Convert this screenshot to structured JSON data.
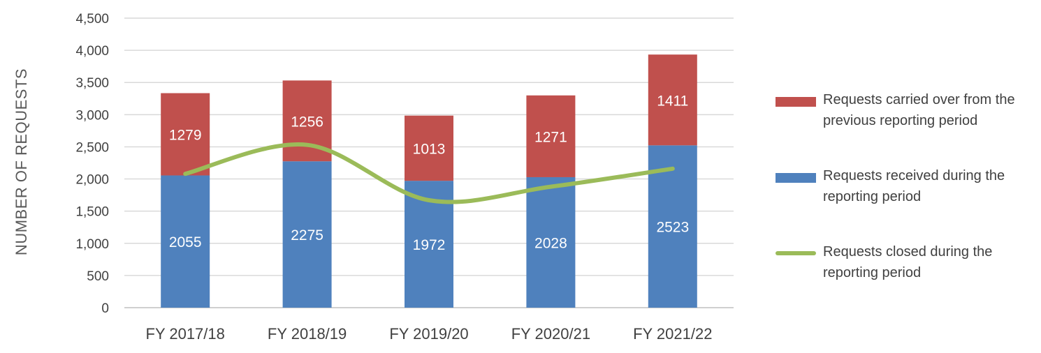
{
  "chart_data": {
    "type": "bar",
    "stacked": true,
    "title": "",
    "xlabel": "",
    "ylabel": "NUMBER OF REQUESTS",
    "ylim": [
      0,
      4500
    ],
    "ytick_step": 500,
    "ytick_labels": [
      "0",
      "500",
      "1,000",
      "1,500",
      "2,000",
      "2,500",
      "3,000",
      "3,500",
      "4,000",
      "4,500"
    ],
    "categories": [
      "FY 2017/18",
      "FY 2018/19",
      "FY 2019/20",
      "FY 2020/21",
      "FY 2021/22"
    ],
    "series": [
      {
        "name": "Requests received during the reporting period",
        "type": "bar",
        "color": "#4F81BD",
        "values": [
          2055,
          2275,
          1972,
          2028,
          2523
        ]
      },
      {
        "name": "Requests carried over from the previous reporting period",
        "type": "bar",
        "color": "#C0504D",
        "values": [
          1279,
          1256,
          1013,
          1271,
          1411
        ]
      },
      {
        "name": "Requests closed during the reporting period",
        "type": "line",
        "color": "#9BBB59",
        "values": [
          2080,
          2530,
          1670,
          1880,
          2160
        ]
      }
    ],
    "grid": true,
    "legend": "right"
  },
  "legend": {
    "carried_label": "Requests carried over from the previous reporting period",
    "received_label": "Requests received during the reporting period",
    "closed_label": "Requests closed during the reporting period"
  }
}
